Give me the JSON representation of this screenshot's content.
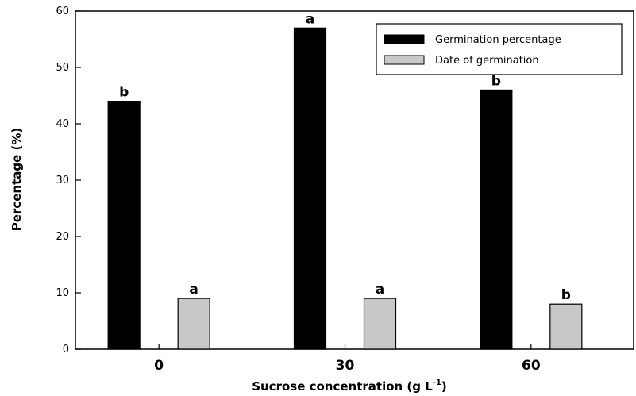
{
  "chart_data": {
    "type": "bar",
    "categories": [
      "0",
      "30",
      "60"
    ],
    "series": [
      {
        "name": "Germination percentage",
        "values": [
          44,
          57,
          46
        ],
        "color": "#000000",
        "significance": [
          "b",
          "a",
          "b"
        ]
      },
      {
        "name": "Date of germination",
        "values": [
          9,
          9,
          8
        ],
        "color": "#c8c8c8",
        "significance": [
          "a",
          "a",
          "b"
        ]
      }
    ],
    "xlabel": "Sucrose concentration (g L",
    "xlabel_superscript": "-1",
    "xlabel_suffix": ")",
    "ylabel": "Percentage (%)",
    "ylim": [
      0,
      60
    ],
    "yticks": [
      0,
      10,
      20,
      30,
      40,
      50,
      60
    ],
    "grid": false,
    "legend_position": "top-right"
  }
}
